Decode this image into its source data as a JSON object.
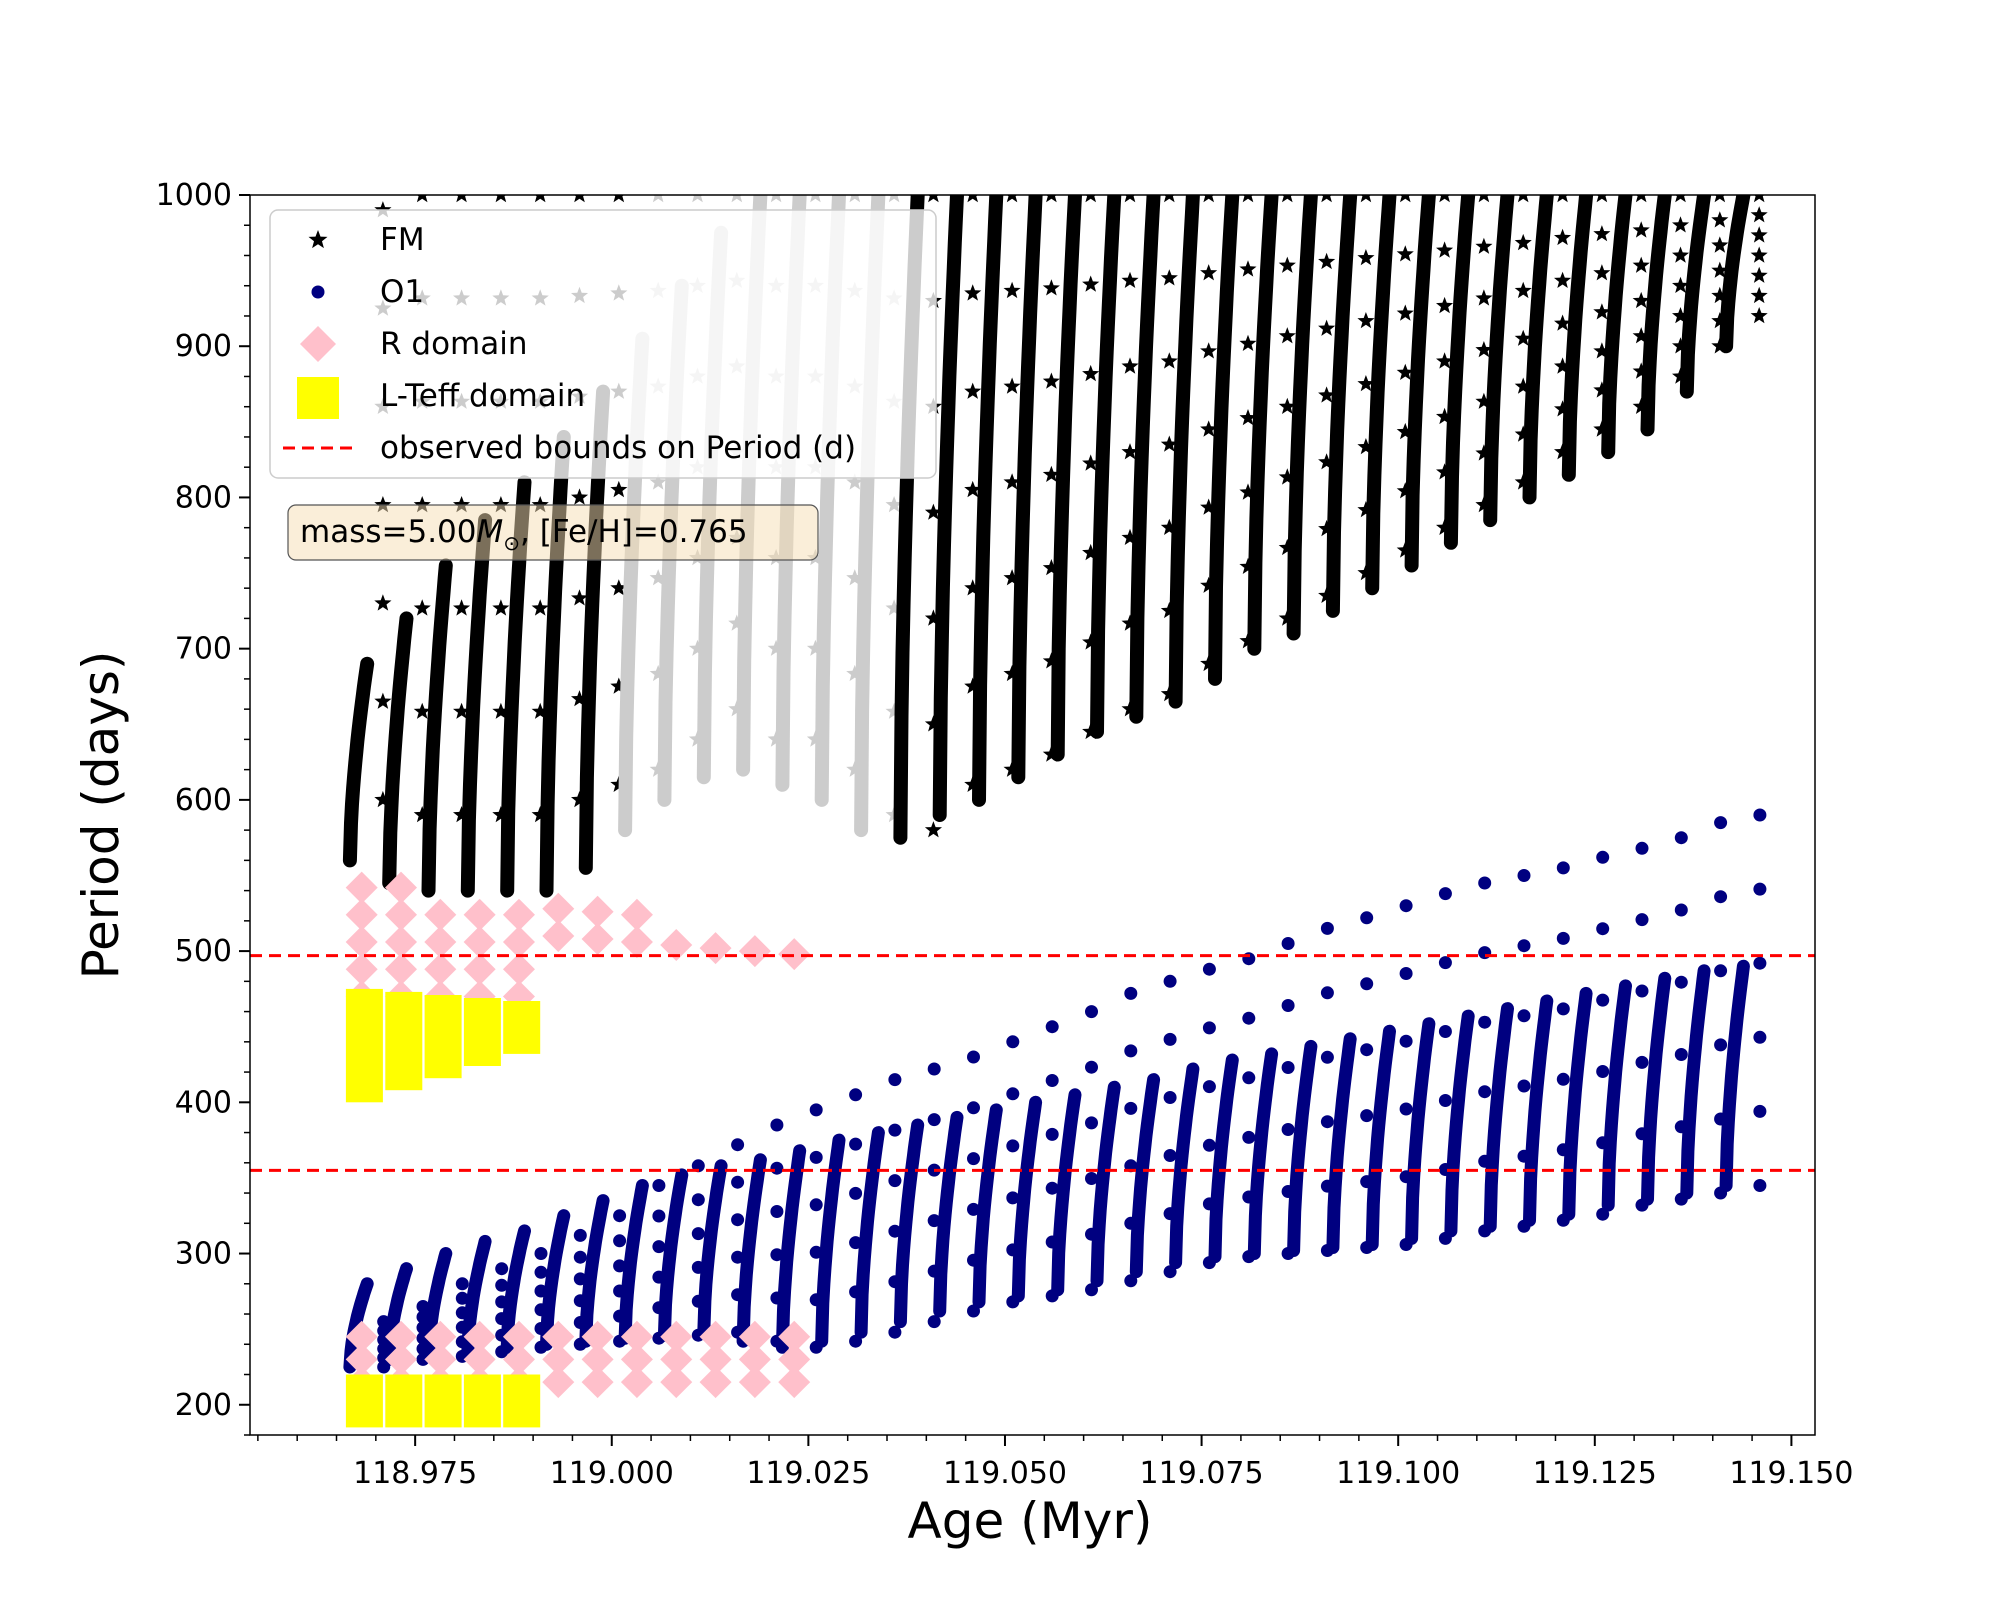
{
  "chart_data": {
    "type": "scatter",
    "xlabel": "Age (Myr)",
    "ylabel": "Period (days)",
    "xlim": [
      118.954,
      119.153
    ],
    "ylim": [
      180,
      1000
    ],
    "xticks": [
      118.975,
      119.0,
      119.025,
      119.05,
      119.075,
      119.1,
      119.125,
      119.15
    ],
    "xtick_labels": [
      "118.975",
      "119.000",
      "119.025",
      "119.050",
      "119.075",
      "119.100",
      "119.125",
      "119.150"
    ],
    "yticks": [
      200,
      300,
      400,
      500,
      600,
      700,
      800,
      900,
      1000
    ],
    "ytick_labels": [
      "200",
      "300",
      "400",
      "500",
      "600",
      "700",
      "800",
      "900",
      "1000"
    ],
    "legend": [
      {
        "label": "FM",
        "marker": "star",
        "color": "#000000"
      },
      {
        "label": "O1",
        "marker": "circle",
        "color": "#000080"
      },
      {
        "label": "R domain",
        "marker": "diamond",
        "color": "#ffc0cb"
      },
      {
        "label": "L-Teff domain",
        "marker": "square",
        "color": "#ffff00"
      },
      {
        "label": "observed bounds on Period (d)",
        "marker": "dashed-line",
        "color": "#ff0000"
      }
    ],
    "legend_position": "top-left",
    "annotation": {
      "prefix": "mass=5.00",
      "symbol": "M",
      "subscript": "⊙",
      "suffix": ", [Fe/H]=0.765"
    },
    "observed_bounds": [
      355,
      497
    ],
    "pulse_start_ages": [
      118.9667,
      118.9717,
      118.9767,
      118.9817,
      118.9867,
      118.9917,
      118.9967,
      119.0017,
      119.0067,
      119.0117,
      119.0167,
      119.0217,
      119.0267,
      119.0317,
      119.0367,
      119.0417,
      119.0467,
      119.0517,
      119.0567,
      119.0617,
      119.0667,
      119.0717,
      119.0767,
      119.0817,
      119.0867,
      119.0917,
      119.0967,
      119.1017,
      119.1067,
      119.1117,
      119.1167,
      119.1217,
      119.1267,
      119.1317,
      119.1367,
      119.1417
    ],
    "series": [
      {
        "name": "FM",
        "marker": "star",
        "color": "#000000",
        "pulse_low": [
          560,
          545,
          540,
          540,
          540,
          540,
          555,
          580,
          600,
          615,
          620,
          610,
          600,
          580,
          575,
          590,
          600,
          615,
          630,
          645,
          655,
          665,
          680,
          700,
          710,
          725,
          740,
          755,
          770,
          785,
          800,
          815,
          830,
          845,
          870,
          900
        ],
        "pulse_high": [
          690,
          720,
          755,
          785,
          810,
          840,
          870,
          905,
          940,
          975,
          1000,
          1000,
          1000,
          1000,
          1000,
          1000,
          1000,
          1000,
          1000,
          1000,
          1000,
          1000,
          1000,
          1000,
          1000,
          1000,
          1000,
          1000,
          1000,
          1000,
          1000,
          1000,
          1000,
          1000,
          1000,
          1000
        ],
        "sparse_low": [
          600,
          590,
          590,
          590,
          590,
          600,
          610,
          620,
          640,
          660,
          640,
          640,
          620,
          590,
          580,
          610,
          620,
          630,
          645,
          660,
          670,
          690,
          705,
          720,
          735,
          750,
          765,
          780,
          795,
          810,
          830,
          845,
          860,
          880,
          900,
          920
        ],
        "sparse_high": [
          990,
          1000,
          1000,
          1000,
          1000,
          1000,
          1000,
          1000,
          1000,
          1000,
          1000,
          1000,
          1000,
          1000,
          1000,
          1000,
          1000,
          1000,
          1000,
          1000,
          1000,
          1000,
          1000,
          1000,
          1000,
          1000,
          1000,
          1000,
          1000,
          1000,
          1000,
          1000,
          1000,
          1000,
          1000,
          1000
        ]
      },
      {
        "name": "O1",
        "marker": "circle",
        "color": "#000080",
        "pulse_low": [
          225,
          230,
          232,
          235,
          238,
          240,
          242,
          244,
          246,
          248,
          242,
          238,
          242,
          248,
          255,
          262,
          268,
          272,
          276,
          282,
          288,
          294,
          298,
          300,
          302,
          304,
          306,
          310,
          315,
          318,
          322,
          326,
          332,
          336,
          340,
          345
        ],
        "pulse_high": [
          280,
          290,
          300,
          308,
          315,
          325,
          335,
          345,
          352,
          358,
          362,
          368,
          375,
          380,
          385,
          390,
          395,
          400,
          405,
          410,
          415,
          422,
          428,
          432,
          437,
          442,
          447,
          452,
          457,
          462,
          467,
          472,
          477,
          482,
          487,
          490
        ],
        "sparse_high": [
          255,
          265,
          280,
          290,
          300,
          312,
          325,
          345,
          358,
          372,
          385,
          395,
          405,
          415,
          422,
          430,
          440,
          450,
          460,
          472,
          480,
          488,
          495,
          505,
          515,
          522,
          530,
          538,
          545,
          550,
          555,
          562,
          568,
          575,
          585,
          590
        ]
      },
      {
        "name": "R domain",
        "marker": "diamond",
        "color": "#ffc0cb",
        "band_low": [
          230,
          220
        ],
        "band_high": [
          520,
          470
        ]
      },
      {
        "name": "L-Teff domain",
        "marker": "square",
        "color": "#ffff00",
        "band_low": [
          185,
          400
        ],
        "band_high": [
          220,
          475
        ]
      },
      {
        "name": "observed bounds on Period (d)",
        "marker": "dashed-line",
        "color": "#ff0000"
      }
    ]
  }
}
